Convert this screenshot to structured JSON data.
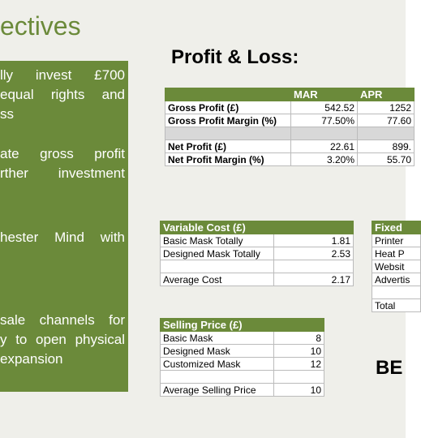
{
  "slide_title": "ectives",
  "objectives": [
    [
      "lly invest £700",
      "equal rights and",
      "ss"
    ],
    [
      "ate gross profit",
      "rther investment"
    ],
    [
      "hester Mind with"
    ],
    [
      "sale channels for",
      "y to open physical",
      "expansion"
    ]
  ],
  "profit_loss": {
    "title": "Profit & Loss:",
    "columns": [
      "MAR",
      "APR"
    ],
    "rows": [
      [
        "Gross Profit (£)",
        "542.52",
        "1252"
      ],
      [
        "Gross Profit Margin (%)",
        "77.50%",
        "77.60"
      ],
      null,
      [
        "Net Profit (£)",
        "22.61",
        "899."
      ],
      [
        "Net Profit Margin (%)",
        "3.20%",
        "55.70"
      ]
    ]
  },
  "variable_cost": {
    "title": "Variable Cost (£)",
    "rows": [
      [
        "Basic Mask Totally",
        "1.81"
      ],
      [
        "Designed Mask Totally",
        "2.53"
      ],
      null,
      [
        "Average Cost",
        "2.17"
      ]
    ]
  },
  "fixed_cost": {
    "title": "Fixed",
    "rows": [
      [
        "Printer"
      ],
      [
        "Heat P"
      ],
      [
        "Websit"
      ],
      [
        "Advertis"
      ],
      null,
      [
        "Total"
      ]
    ]
  },
  "selling_price": {
    "title": "Selling Price (£)",
    "rows": [
      [
        "Basic Mask",
        "8"
      ],
      [
        "Designed Mask",
        "10"
      ],
      [
        "Customized Mask",
        "12"
      ],
      null,
      [
        "Average Selling Price",
        "10"
      ]
    ]
  },
  "break_even_label": "BE"
}
